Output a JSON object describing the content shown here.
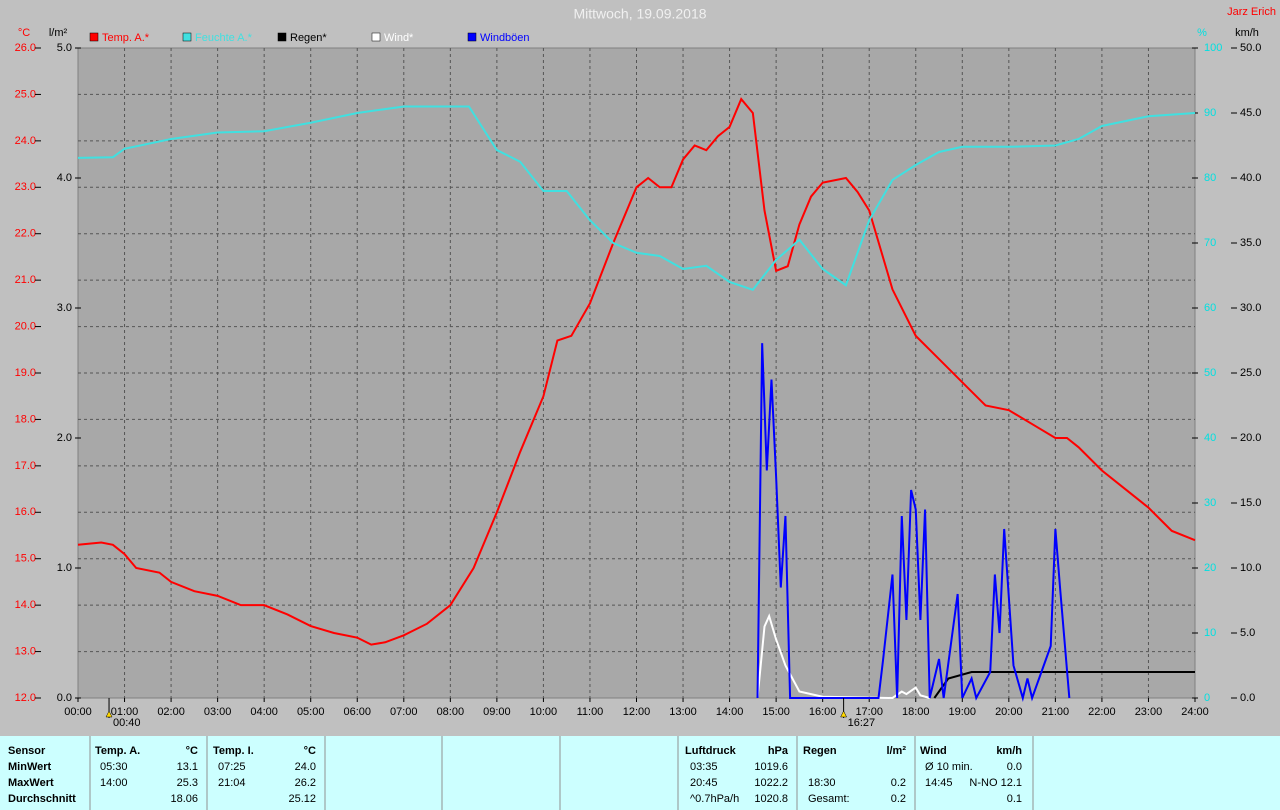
{
  "chart_data": {
    "type": "line",
    "title": "Mittwoch, 19.09.2018",
    "station": "Jarz Erich",
    "grid": true,
    "xticks": [
      {
        "value": 0,
        "label": "00:00"
      },
      {
        "value": 1,
        "label": "01:00"
      },
      {
        "value": 2,
        "label": "02:00"
      },
      {
        "value": 3,
        "label": "03:00"
      },
      {
        "value": 4,
        "label": "04:00"
      },
      {
        "value": 5,
        "label": "05:00"
      },
      {
        "value": 6,
        "label": "06:00"
      },
      {
        "value": 7,
        "label": "07:00"
      },
      {
        "value": 8,
        "label": "08:00"
      },
      {
        "value": 9,
        "label": "09:00"
      },
      {
        "value": 10,
        "label": "10:00"
      },
      {
        "value": 11,
        "label": "11:00"
      },
      {
        "value": 12,
        "label": "12:00"
      },
      {
        "value": 13,
        "label": "13:00"
      },
      {
        "value": 14,
        "label": "14:00"
      },
      {
        "value": 15,
        "label": "15:00"
      },
      {
        "value": 16,
        "label": "16:00"
      },
      {
        "value": 17,
        "label": "17:00"
      },
      {
        "value": 18,
        "label": "18:00"
      },
      {
        "value": 19,
        "label": "19:00"
      },
      {
        "value": 20,
        "label": "20:00"
      },
      {
        "value": 21,
        "label": "21:00"
      },
      {
        "value": 22,
        "label": "22:00"
      },
      {
        "value": 23,
        "label": "23:00"
      },
      {
        "value": 24,
        "label": "24:00"
      }
    ],
    "xlim": [
      0,
      24
    ],
    "axes": [
      {
        "label": "°C",
        "color": "#ff0000",
        "side": "left",
        "lim": [
          12,
          26
        ],
        "ticks": [
          {
            "value": 12,
            "label": "12.0"
          },
          {
            "value": 13,
            "label": "13.0"
          },
          {
            "value": 14,
            "label": "14.0"
          },
          {
            "value": 15,
            "label": "15.0"
          },
          {
            "value": 16,
            "label": "16.0"
          },
          {
            "value": 17,
            "label": "17.0"
          },
          {
            "value": 18,
            "label": "18.0"
          },
          {
            "value": 19,
            "label": "19.0"
          },
          {
            "value": 20,
            "label": "20.0"
          },
          {
            "value": 21,
            "label": "21.0"
          },
          {
            "value": 22,
            "label": "22.0"
          },
          {
            "value": 23,
            "label": "23.0"
          },
          {
            "value": 24,
            "label": "24.0"
          },
          {
            "value": 25,
            "label": "25.0"
          },
          {
            "value": 26,
            "label": "26.0"
          }
        ]
      },
      {
        "label": "l/m²",
        "color": "#000000",
        "side": "left",
        "lim": [
          0,
          5
        ],
        "ticks": [
          {
            "value": 0,
            "label": "0.0"
          },
          {
            "value": 1,
            "label": "1.0"
          },
          {
            "value": 2,
            "label": "2.0"
          },
          {
            "value": 3,
            "label": "3.0"
          },
          {
            "value": 4,
            "label": "4.0"
          },
          {
            "value": 5,
            "label": "5.0"
          }
        ]
      },
      {
        "label": "%",
        "color": "#00e0e0",
        "side": "right",
        "lim": [
          0,
          100
        ],
        "ticks": [
          0,
          10,
          20,
          30,
          40,
          50,
          60,
          70,
          80,
          90,
          100
        ]
      },
      {
        "label": "km/h",
        "color": "#000000",
        "side": "right",
        "lim": [
          0,
          50
        ],
        "ticks": [
          {
            "value": 0,
            "label": "0.0"
          },
          {
            "value": 5,
            "label": "5.0"
          },
          {
            "value": 10,
            "label": "10.0"
          },
          {
            "value": 15,
            "label": "15.0"
          },
          {
            "value": 20,
            "label": "20.0"
          },
          {
            "value": 25,
            "label": "25.0"
          },
          {
            "value": 30,
            "label": "30.0"
          },
          {
            "value": 35,
            "label": "35.0"
          },
          {
            "value": 40,
            "label": "40.0"
          },
          {
            "value": 45,
            "label": "45.0"
          },
          {
            "value": 50,
            "label": "50.0"
          }
        ]
      }
    ],
    "series": [
      {
        "name": "Temp. A.*",
        "color": "#ff0000",
        "axis": 0,
        "x": [
          0,
          0.5,
          0.75,
          1,
          1.25,
          1.75,
          2,
          2.5,
          3,
          3.5,
          4,
          4.5,
          5,
          5.5,
          6,
          6.3,
          6.6,
          7,
          7.5,
          8,
          8.5,
          9,
          9.5,
          10,
          10.3,
          10.6,
          11,
          11.5,
          12,
          12.25,
          12.5,
          12.75,
          13,
          13.25,
          13.5,
          13.75,
          14,
          14.25,
          14.5,
          14.75,
          15,
          15.25,
          15.5,
          15.75,
          16,
          16.5,
          16.75,
          17,
          17.5,
          18,
          18.5,
          19,
          19.5,
          20,
          20.5,
          21,
          21.25,
          21.5,
          22,
          22.5,
          23,
          23.5,
          24
        ],
        "values": [
          15.3,
          15.35,
          15.3,
          15.1,
          14.8,
          14.7,
          14.5,
          14.3,
          14.2,
          14.0,
          14.0,
          13.8,
          13.55,
          13.4,
          13.3,
          13.15,
          13.2,
          13.35,
          13.6,
          14.0,
          14.8,
          16.0,
          17.3,
          18.5,
          19.7,
          19.8,
          20.5,
          21.8,
          23.0,
          23.2,
          23.0,
          23.0,
          23.6,
          23.9,
          23.8,
          24.1,
          24.3,
          24.9,
          24.6,
          22.5,
          21.2,
          21.3,
          22.2,
          22.8,
          23.1,
          23.2,
          22.9,
          22.5,
          20.8,
          19.8,
          19.3,
          18.8,
          18.3,
          18.2,
          17.9,
          17.6,
          17.6,
          17.4,
          16.9,
          16.5,
          16.1,
          15.6,
          15.4
        ]
      },
      {
        "name": "Feuchte A.*",
        "color": "#40e0e0",
        "axis": 2,
        "x": [
          0,
          0.75,
          1,
          2,
          3,
          4,
          5,
          6,
          7,
          8,
          8.4,
          9,
          9.5,
          10,
          10.5,
          11,
          11.5,
          12,
          12.5,
          13,
          13.5,
          14,
          14.5,
          15,
          15.5,
          16,
          16.5,
          17,
          17.5,
          18,
          18.5,
          19,
          20,
          21,
          21.5,
          22,
          23,
          24
        ],
        "values": [
          83.1,
          83.2,
          84.5,
          86,
          87,
          87.2,
          88.5,
          90,
          91,
          91,
          91,
          84.3,
          82.5,
          78,
          78,
          73.5,
          70,
          68.5,
          68,
          66,
          66.5,
          64,
          62.8,
          67.4,
          70.5,
          66,
          63.5,
          73.5,
          79.7,
          82,
          84,
          84.8,
          84.8,
          85,
          86,
          88,
          89.5,
          90
        ]
      },
      {
        "name": "Regen*",
        "color": "#000000",
        "axis": 1,
        "x": [
          18.4,
          18.7,
          19.2,
          24
        ],
        "values": [
          0,
          0.15,
          0.2,
          0.2
        ]
      },
      {
        "name": "Wind*",
        "color": "#ffffff",
        "axis": 3,
        "x": [
          14.6,
          14.75,
          14.85,
          15.0,
          15.2,
          15.5,
          16.0,
          17.5,
          17.7,
          17.8,
          18.0,
          18.1,
          18.3
        ],
        "values": [
          0,
          5.5,
          6.3,
          4.5,
          2.5,
          0.5,
          0.1,
          0,
          0.5,
          0.3,
          0.8,
          0.2,
          0
        ]
      },
      {
        "name": "Windböen",
        "color": "#0000ff",
        "axis": 3,
        "x": [
          14.6,
          14.7,
          14.8,
          14.9,
          15.0,
          15.1,
          15.2,
          15.3,
          17.2,
          17.3,
          17.5,
          17.6,
          17.7,
          17.8,
          17.9,
          18.0,
          18.1,
          18.2,
          18.3,
          18.5,
          18.6,
          18.9,
          19.0,
          19.2,
          19.3,
          19.6,
          19.7,
          19.8,
          19.9,
          20.1,
          20.3,
          20.4,
          20.5,
          20.9,
          21.0,
          21.1,
          21.3
        ],
        "values": [
          0,
          27.3,
          17.5,
          24.5,
          17.0,
          8.5,
          14.0,
          0,
          0,
          3.0,
          9.5,
          0,
          14.0,
          6.0,
          16.0,
          14.5,
          6.0,
          14.5,
          0,
          3.0,
          0,
          8.0,
          0,
          1.5,
          0,
          2.0,
          9.5,
          5.0,
          13.0,
          2.5,
          0,
          1.5,
          0,
          4.0,
          13.0,
          8.5,
          0
        ]
      }
    ],
    "annotations": [
      {
        "label": "00:40",
        "x": 0.6667
      },
      {
        "label": "16:27",
        "x": 16.45
      }
    ]
  },
  "stats_table": {
    "headers": {
      "sensor": "Sensor",
      "temp_a": [
        "Temp. A.",
        "°C"
      ],
      "temp_i": [
        "Temp. I.",
        "°C"
      ],
      "pressure": [
        "Luftdruck",
        "hPa"
      ],
      "rain": [
        "Regen",
        "l/m²"
      ],
      "wind": [
        "Wind",
        "km/h"
      ]
    },
    "rows": [
      {
        "label": "MinWert",
        "temp_a": {
          "time": "05:30",
          "value": "13.1"
        },
        "temp_i": {
          "time": "07:25",
          "value": "24.0"
        },
        "pressure": {
          "time": "03:35",
          "value": "1019.6"
        },
        "wind": {
          "time": "Ø 10 min.",
          "value": "0.0"
        }
      },
      {
        "label": "MaxWert",
        "temp_a": {
          "time": "14:00",
          "value": "25.3"
        },
        "temp_i": {
          "time": "21:04",
          "value": "26.2"
        },
        "pressure": {
          "time": "20:45",
          "value": "1022.2"
        },
        "rain": {
          "time": "18:30",
          "value": "0.2"
        },
        "wind": {
          "time": "14:45",
          "value": "N-NO 12.1"
        }
      },
      {
        "label": "Durchschnitt",
        "temp_a": {
          "value": "18.06"
        },
        "temp_i": {
          "value": "25.12"
        },
        "pressure": {
          "time": "^0.7hPa/h",
          "value": "1020.8"
        },
        "rain": {
          "time": "Gesamt:",
          "value": "0.2"
        },
        "wind": {
          "value": "0.1"
        }
      }
    ]
  }
}
